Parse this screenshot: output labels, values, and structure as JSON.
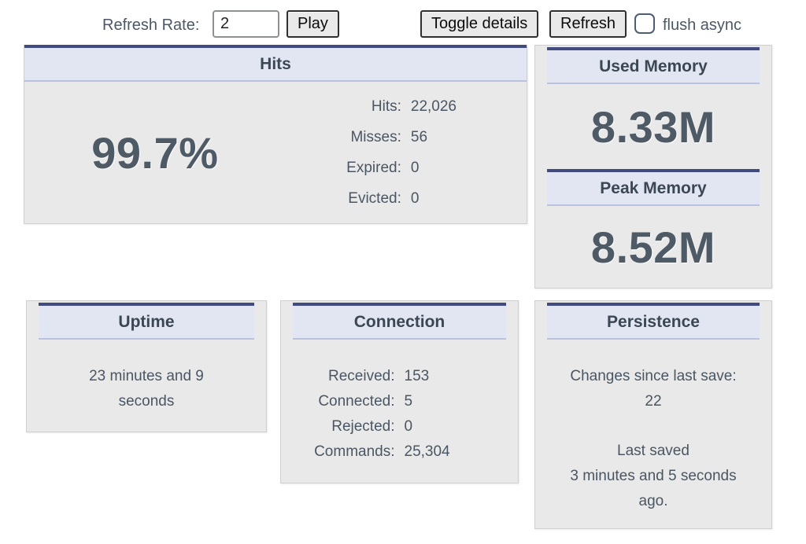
{
  "colors": {
    "accent_navy": "#424b7e",
    "header_bg": "#e2e5f2",
    "header_divider": "#b9c2de",
    "panel_bg": "#e9e9e9",
    "text_slate": "#4a5663"
  },
  "toolbar": {
    "refresh_rate_label": "Refresh Rate:",
    "refresh_rate_value": "2",
    "play_label": "Play",
    "toggle_details_label": "Toggle details",
    "refresh_label": "Refresh",
    "flush_async_label": "flush async",
    "flush_async_checked": "false"
  },
  "panels": {
    "hits": {
      "title": "Hits",
      "hit_rate": "99.7%",
      "stats": [
        {
          "label": "Hits:",
          "value": "22,026"
        },
        {
          "label": "Misses:",
          "value": "56"
        },
        {
          "label": "Expired:",
          "value": "0"
        },
        {
          "label": "Evicted:",
          "value": "0"
        }
      ]
    },
    "memory": {
      "used_title": "Used Memory",
      "used_value": "8.33M",
      "peak_title": "Peak Memory",
      "peak_value": "8.52M"
    },
    "uptime": {
      "title": "Uptime",
      "lines": [
        "23 minutes and 9",
        "seconds"
      ]
    },
    "connection": {
      "title": "Connection",
      "stats": [
        {
          "label": "Received:",
          "value": "153"
        },
        {
          "label": "Connected:",
          "value": "5"
        },
        {
          "label": "Rejected:",
          "value": "0"
        },
        {
          "label": "Commands:",
          "value": "25,304"
        }
      ]
    },
    "persistence": {
      "title": "Persistence",
      "changes_lines": [
        "Changes since last save:",
        "22"
      ],
      "saved_lines": [
        "Last saved",
        "3 minutes and 5 seconds",
        "ago."
      ]
    }
  }
}
